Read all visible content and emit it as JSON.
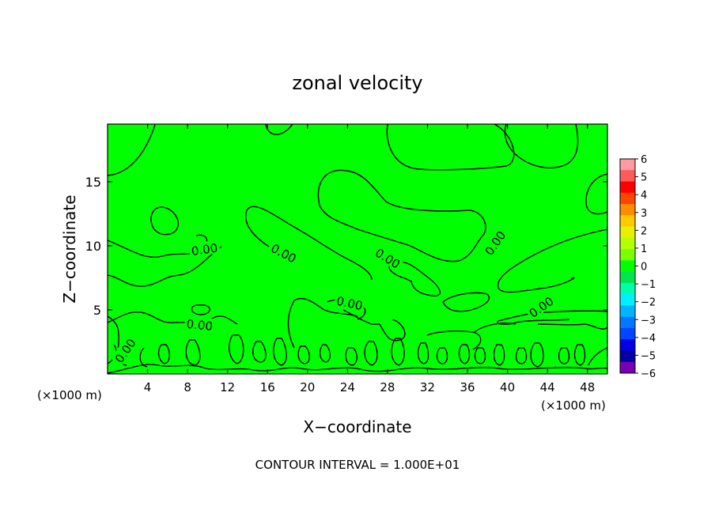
{
  "chart_data": {
    "type": "contour",
    "title": "zonal velocity",
    "xlabel": "X−coordinate",
    "ylabel": "Z−coordinate",
    "x_unit": "(×1000 m)",
    "x_unit_right": "(×1000 m)",
    "xlim": [
      0,
      50
    ],
    "ylim": [
      0,
      19.5
    ],
    "x_ticks": [
      4,
      8,
      12,
      16,
      20,
      24,
      28,
      32,
      36,
      40,
      44,
      48
    ],
    "y_ticks": [
      5,
      10,
      15
    ],
    "footer": "CONTOUR INTERVAL = 1.000E+01",
    "contour_labels": [
      {
        "text": "0.00",
        "x": 9.7,
        "y": 9.7,
        "angle": -8
      },
      {
        "text": "0.00",
        "x": 17.6,
        "y": 9.4,
        "angle": 28
      },
      {
        "text": "0.00",
        "x": 28.0,
        "y": 9.0,
        "angle": 32
      },
      {
        "text": "0.00",
        "x": 38.8,
        "y": 10.2,
        "angle": -55
      },
      {
        "text": "0.00",
        "x": 24.2,
        "y": 5.5,
        "angle": 12
      },
      {
        "text": "0.00",
        "x": 43.4,
        "y": 5.2,
        "angle": -35
      },
      {
        "text": "0.00",
        "x": 9.2,
        "y": 3.8,
        "angle": 6
      },
      {
        "text": "0.00",
        "x": 1.8,
        "y": 1.8,
        "angle": -55
      }
    ],
    "colorbar": {
      "labels": [
        "6",
        "5",
        "4",
        "3",
        "2",
        "1",
        "0",
        "−1",
        "−2",
        "−3",
        "−4",
        "−5",
        "−6"
      ],
      "colors": [
        "#ff9aa0",
        "#ff5a5a",
        "#ff0000",
        "#ff4500",
        "#ff8c00",
        "#ffc800",
        "#e6f000",
        "#b4ff00",
        "#78ff00",
        "#00ff00",
        "#00e650",
        "#00ffaa",
        "#00f0ff",
        "#00b4ff",
        "#0078ff",
        "#0046ff",
        "#0000e6",
        "#0000a0",
        "#7800b4"
      ]
    }
  }
}
